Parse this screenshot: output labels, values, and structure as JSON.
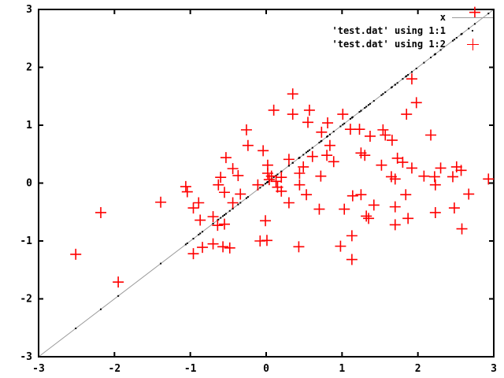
{
  "figure": {
    "background_color": "#ffffff",
    "border_color": "#000000",
    "marker_color": "#ff0000",
    "line_color": "#9a9a9a",
    "dot_color": "#000000"
  },
  "chart_data": {
    "type": "scatter",
    "title": "",
    "xlabel": "",
    "ylabel": "",
    "xlim": [
      -3,
      3
    ],
    "ylim": [
      -3,
      3
    ],
    "x_ticks": [
      -3,
      -2,
      -1,
      0,
      1,
      2,
      3
    ],
    "y_ticks": [
      -3,
      -2,
      -1,
      0,
      1,
      2,
      3
    ],
    "grid": false,
    "legend_position": "top-right-inside",
    "series": [
      {
        "name": "x",
        "type": "line",
        "color": "#9a9a9a",
        "points": [
          [
            -3,
            -3
          ],
          [
            3,
            3
          ]
        ]
      },
      {
        "name": "'test.dat' using 1:1",
        "type": "dots",
        "color": "#000000",
        "note": "column 1 plotted against itself: every point lies on y=x at the x_values below",
        "x_values": [
          0.35,
          0.1,
          0.35,
          0.57,
          0.55,
          0.81,
          -0.26,
          0.73,
          -0.24,
          -0.04,
          0.84,
          -0.53,
          -0.44,
          -0.37,
          -0.6,
          0.02,
          0.02,
          0.07,
          0.3,
          0.49,
          0.61,
          0.8,
          0.89,
          0.72,
          0.44,
          0.2,
          0.04,
          0.13,
          2.75,
          1.92,
          1.98,
          1.85,
          1.01,
          1.11,
          1.23,
          1.37,
          1.54,
          1.57,
          1.66,
          1.25,
          1.3,
          2.17,
          1.52,
          1.73,
          1.8,
          1.92,
          2.3,
          2.51,
          2.57,
          2.08,
          2.22,
          1.65,
          1.7,
          2.46,
          2.93,
          -2.18,
          -1.39,
          -1.06,
          -2.51,
          -1.95,
          -1.04,
          -0.63,
          -0.55,
          -0.34,
          -0.44,
          -0.11,
          0.15,
          0.2,
          0.44,
          0.53,
          0.3,
          -0.89,
          -0.96,
          -0.87,
          -0.7,
          -0.64,
          -0.55,
          0.7,
          -0.01,
          -0.08,
          0.01,
          0.43,
          -0.7,
          -0.57,
          -0.48,
          -0.84,
          -0.96,
          1.14,
          1.25,
          1.03,
          1.42,
          1.35,
          1.32,
          1.7,
          1.84,
          1.7,
          1.87,
          2.23,
          2.48,
          2.58,
          2.67,
          2.23,
          1.13,
          0.98,
          1.13
        ]
      },
      {
        "name": "'test.dat' using 1:2",
        "type": "points",
        "marker": "plus",
        "color": "#ff0000",
        "points": [
          [
            0.35,
            1.54
          ],
          [
            0.1,
            1.26
          ],
          [
            0.35,
            1.19
          ],
          [
            0.57,
            1.26
          ],
          [
            0.55,
            1.05
          ],
          [
            0.81,
            1.04
          ],
          [
            -0.26,
            0.92
          ],
          [
            0.73,
            0.88
          ],
          [
            -0.24,
            0.65
          ],
          [
            -0.04,
            0.56
          ],
          [
            0.84,
            0.65
          ],
          [
            -0.53,
            0.44
          ],
          [
            -0.44,
            0.25
          ],
          [
            -0.37,
            0.13
          ],
          [
            -0.6,
            0.1
          ],
          [
            0.02,
            0.31
          ],
          [
            0.02,
            0.17
          ],
          [
            0.07,
            0.12
          ],
          [
            0.3,
            0.41
          ],
          [
            0.49,
            0.28
          ],
          [
            0.61,
            0.46
          ],
          [
            0.8,
            0.48
          ],
          [
            0.89,
            0.37
          ],
          [
            0.72,
            0.12
          ],
          [
            0.44,
            0.17
          ],
          [
            0.2,
            0.1
          ],
          [
            0.04,
            0.06
          ],
          [
            0.13,
            0.03
          ],
          [
            2.75,
            2.95
          ],
          [
            1.92,
            1.8
          ],
          [
            1.98,
            1.39
          ],
          [
            1.85,
            1.19
          ],
          [
            1.01,
            1.19
          ],
          [
            1.11,
            0.93
          ],
          [
            1.23,
            0.93
          ],
          [
            1.37,
            0.81
          ],
          [
            1.54,
            0.92
          ],
          [
            1.57,
            0.83
          ],
          [
            1.66,
            0.74
          ],
          [
            1.25,
            0.52
          ],
          [
            1.3,
            0.48
          ],
          [
            2.17,
            0.83
          ],
          [
            1.52,
            0.31
          ],
          [
            1.73,
            0.43
          ],
          [
            1.8,
            0.36
          ],
          [
            1.92,
            0.26
          ],
          [
            2.3,
            0.26
          ],
          [
            2.51,
            0.28
          ],
          [
            2.57,
            0.22
          ],
          [
            2.08,
            0.12
          ],
          [
            2.22,
            0.11
          ],
          [
            1.65,
            0.11
          ],
          [
            1.7,
            0.07
          ],
          [
            2.46,
            0.11
          ],
          [
            2.93,
            0.07
          ],
          [
            -2.18,
            -0.51
          ],
          [
            -1.39,
            -0.33
          ],
          [
            -1.06,
            -0.06
          ],
          [
            -2.51,
            -1.23
          ],
          [
            -1.95,
            -1.71
          ],
          [
            -1.04,
            -0.15
          ],
          [
            -0.63,
            -0.03
          ],
          [
            -0.55,
            -0.16
          ],
          [
            -0.34,
            -0.19
          ],
          [
            -0.44,
            -0.34
          ],
          [
            -0.11,
            -0.03
          ],
          [
            0.15,
            -0.07
          ],
          [
            0.2,
            -0.14
          ],
          [
            0.44,
            -0.03
          ],
          [
            0.53,
            -0.2
          ],
          [
            0.3,
            -0.34
          ],
          [
            -0.89,
            -0.34
          ],
          [
            -0.96,
            -0.43
          ],
          [
            -0.87,
            -0.64
          ],
          [
            -0.7,
            -0.58
          ],
          [
            -0.64,
            -0.73
          ],
          [
            -0.55,
            -0.71
          ],
          [
            0.7,
            -0.45
          ],
          [
            -0.01,
            -0.65
          ],
          [
            -0.08,
            -1.0
          ],
          [
            0.01,
            -0.99
          ],
          [
            0.43,
            -1.1
          ],
          [
            -0.7,
            -1.05
          ],
          [
            -0.57,
            -1.1
          ],
          [
            -0.48,
            -1.12
          ],
          [
            -0.84,
            -1.11
          ],
          [
            -0.96,
            -1.22
          ],
          [
            1.14,
            -0.22
          ],
          [
            1.25,
            -0.2
          ],
          [
            1.03,
            -0.45
          ],
          [
            1.42,
            -0.38
          ],
          [
            1.35,
            -0.61
          ],
          [
            1.32,
            -0.57
          ],
          [
            1.7,
            -0.41
          ],
          [
            1.84,
            -0.2
          ],
          [
            1.7,
            -0.72
          ],
          [
            1.87,
            -0.61
          ],
          [
            2.23,
            -0.51
          ],
          [
            2.48,
            -0.43
          ],
          [
            2.58,
            -0.79
          ],
          [
            2.67,
            -0.19
          ],
          [
            2.23,
            -0.03
          ],
          [
            1.13,
            -0.91
          ],
          [
            0.98,
            -1.09
          ],
          [
            1.13,
            -1.32
          ]
        ]
      }
    ]
  }
}
